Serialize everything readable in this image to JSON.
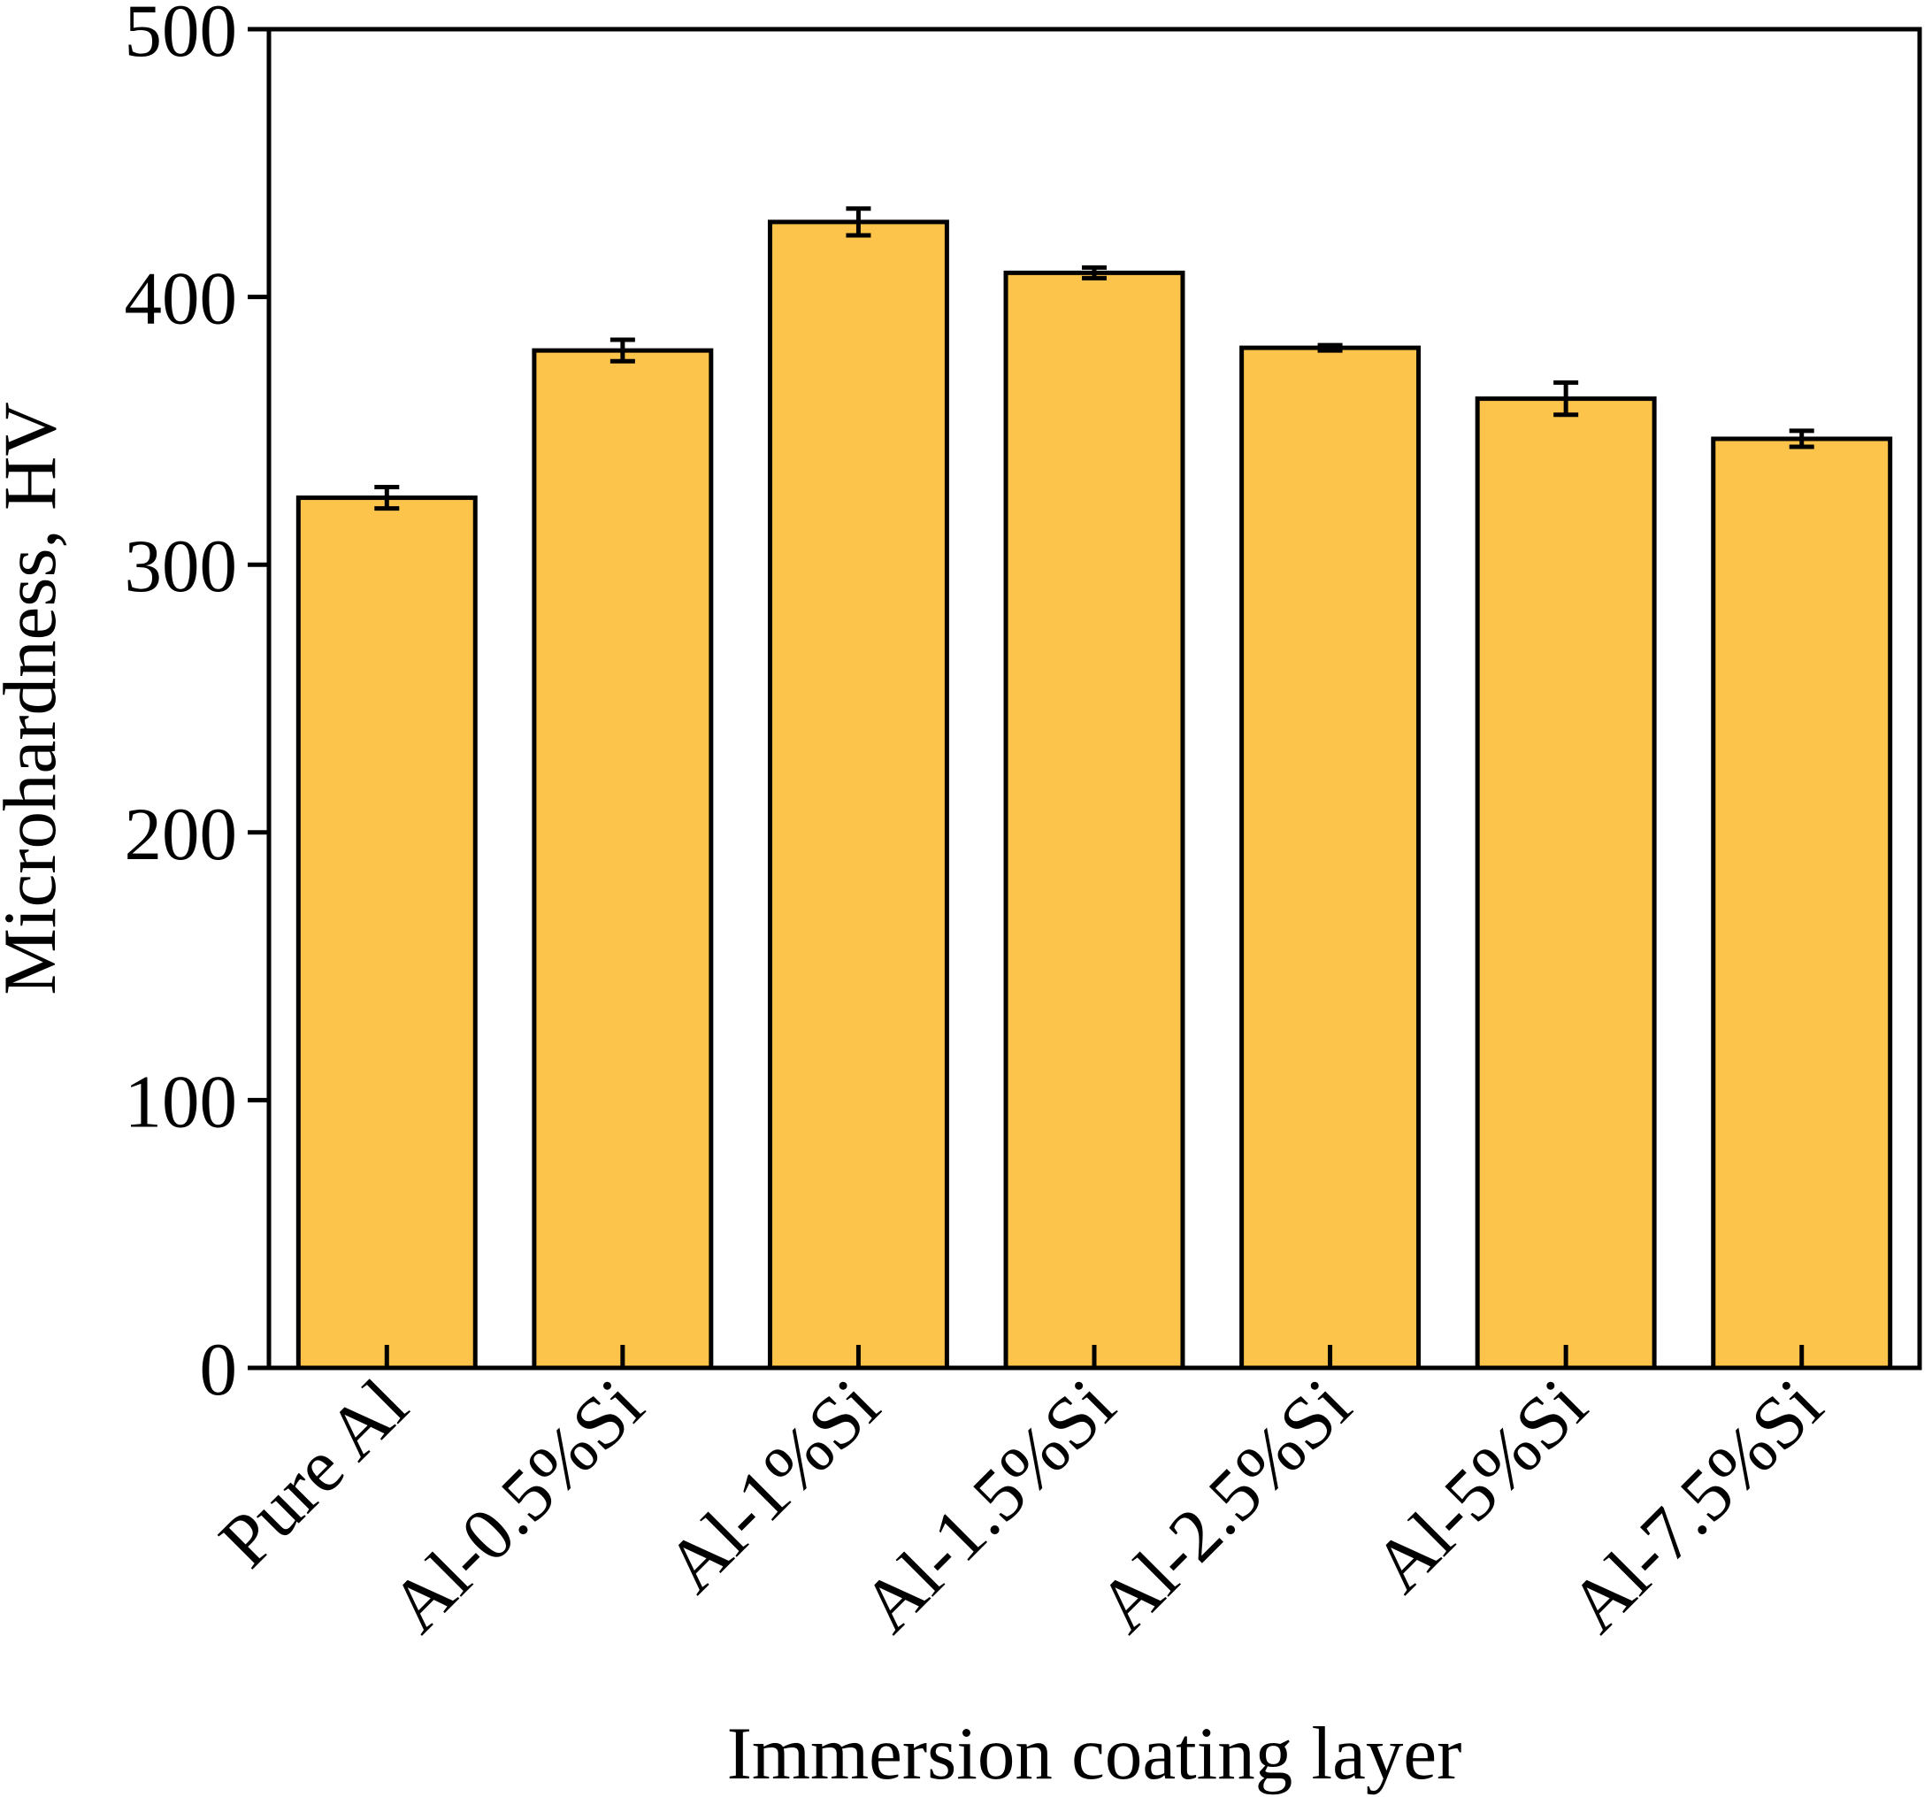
{
  "chart_data": {
    "type": "bar",
    "xlabel": "Immersion coating layer",
    "ylabel": "Microhardness, HV",
    "ylim": [
      0,
      500
    ],
    "yticks": [
      "0",
      "100",
      "200",
      "300",
      "400",
      "500"
    ],
    "categories": [
      "Pure Al",
      "Al-0.5%Si",
      "Al-1%Si",
      "Al-1.5%Si",
      "Al-2.5%Si",
      "Al-5%Si",
      "Al-7.5%Si"
    ],
    "values": [
      325,
      380,
      428,
      409,
      381,
      362,
      347
    ],
    "errors": [
      4,
      4,
      5,
      2,
      1,
      6,
      3
    ],
    "grid": false,
    "bar_color": "#FCC44B",
    "edge_color": "#000000"
  }
}
